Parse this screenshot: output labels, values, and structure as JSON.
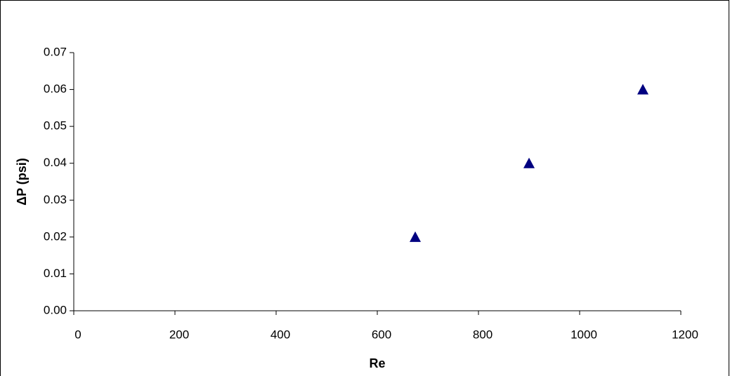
{
  "chart_data": {
    "type": "scatter",
    "x_label": "Re",
    "y_label": "ΔP (psi)",
    "series": [
      {
        "color": "#000080",
        "x": [
          675,
          900,
          1125
        ],
        "values": [
          0.02,
          0.04,
          0.06
        ]
      }
    ],
    "xlim": [
      0,
      1200
    ],
    "xticks": [
      0,
      200,
      400,
      600,
      800,
      1000,
      1200
    ],
    "ylim": [
      0,
      0.07
    ],
    "yticks": [
      {
        "value": 0,
        "label": "0.00"
      },
      {
        "value": 0.01,
        "label": "0.01"
      },
      {
        "value": 0.02,
        "label": "0.02"
      },
      {
        "value": 0.03,
        "label": "0.03"
      },
      {
        "value": 0.04,
        "label": "0.04"
      },
      {
        "value": 0.05,
        "label": "0.05"
      },
      {
        "value": 0.06,
        "label": "0.06"
      },
      {
        "value": 0.07,
        "label": "0.07"
      }
    ],
    "grid": false
  }
}
